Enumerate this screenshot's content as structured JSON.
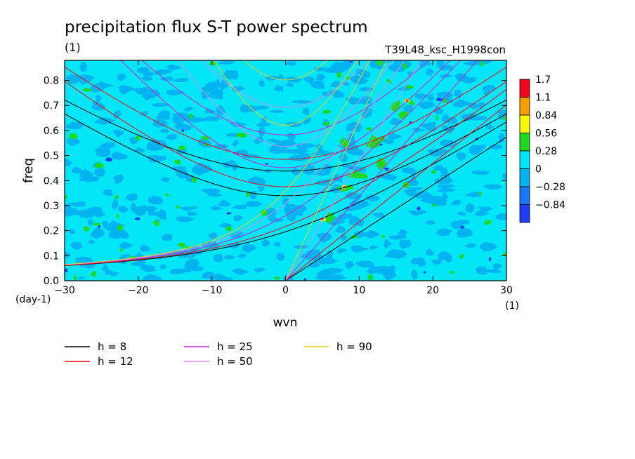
{
  "chart_data": {
    "type": "heatmap",
    "title": "precipitation flux S-T power spectrum",
    "units": "(1)",
    "run_label": "T39L48_ksc_H1998con",
    "xlabel": "wvn",
    "x_units": "(1)",
    "ylabel": "freq",
    "y_units": "(day-1)",
    "xlim": [
      -30,
      30
    ],
    "ylim": [
      0,
      0.88
    ],
    "x_ticks": [
      "−30",
      "−20",
      "−10",
      "0",
      "10",
      "20",
      "30"
    ],
    "x_tick_values": [
      -30,
      -20,
      -10,
      0,
      10,
      20,
      30
    ],
    "y_ticks": [
      "0.0",
      "0.1",
      "0.2",
      "0.3",
      "0.4",
      "0.5",
      "0.6",
      "0.7",
      "0.8"
    ],
    "y_tick_values": [
      0,
      0.1,
      0.2,
      0.3,
      0.4,
      0.5,
      0.6,
      0.7,
      0.8
    ],
    "colorbar": {
      "levels": [
        "1.7",
        "1.1",
        "0.84",
        "0.56",
        "0.28",
        "0",
        "−0.28",
        "−0.84"
      ],
      "colors": [
        "#f2051b",
        "#f5a002",
        "#f8f809",
        "#1fd81f",
        "#03e6f7",
        "#00b4f2",
        "#1878f5",
        "#1e3cf5"
      ]
    },
    "field_colors": {
      "background": "#03e6f7",
      "low": "#00b4f2",
      "very_low": "#1e3cf5",
      "high": "#1fd81f",
      "higher": "#f8f809",
      "highest": "#f2051b"
    },
    "dispersion_curves": [
      {
        "label": "h =  8",
        "h": 8,
        "color": "#000000"
      },
      {
        "label": "h = 12",
        "h": 12,
        "color": "#f2051b"
      },
      {
        "label": "h = 25",
        "h": 25,
        "color": "#d21ed2"
      },
      {
        "label": "h = 50",
        "h": 50,
        "color": "#d68be6"
      },
      {
        "label": "h = 90",
        "h": 90,
        "color": "#e6d21e"
      }
    ]
  }
}
